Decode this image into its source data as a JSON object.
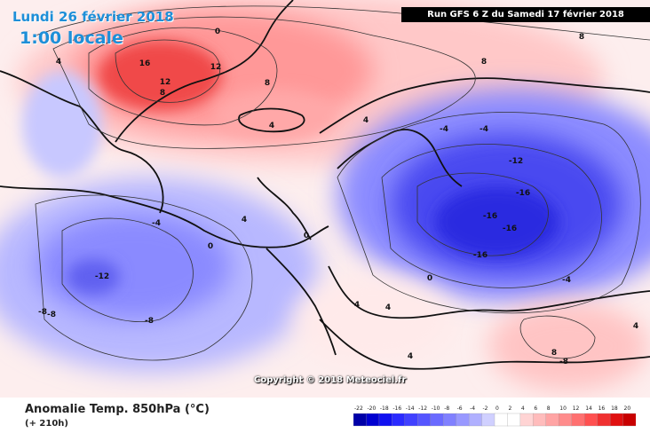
{
  "map": {
    "date_line": "Lundi 26 février 2018",
    "time_line": "1:00 locale",
    "run_info": "Run GFS 6 Z du Samedi 17 février 2018",
    "copyright": "Copyright © 2018 Meteociel.fr",
    "variable": "Anomalie Temp. 850hPa (°C)",
    "lead_time": "(+ 210h)"
  },
  "legend": {
    "ticks": [
      "-22",
      "-20",
      "-18",
      "-16",
      "-14",
      "-12",
      "-10",
      "-8",
      "-6",
      "-4",
      "-2",
      "0",
      "2",
      "4",
      "6",
      "8",
      "10",
      "12",
      "14",
      "16",
      "18",
      "20"
    ],
    "colors": [
      "#0000a8",
      "#0000d0",
      "#1010f0",
      "#2a2aff",
      "#4040ff",
      "#5555ff",
      "#6a6aff",
      "#8080ff",
      "#9898ff",
      "#b0b0ff",
      "#d0d0ff",
      "#ffffff",
      "#ffffff",
      "#ffd4d4",
      "#ffbcbc",
      "#ffa4a4",
      "#ff8c8c",
      "#ff7070",
      "#ff5050",
      "#f03030",
      "#e01010",
      "#c80000"
    ]
  },
  "contour_labels": [
    {
      "text": "16"
    },
    {
      "text": "12"
    },
    {
      "text": "12"
    },
    {
      "text": "8"
    },
    {
      "text": "8"
    },
    {
      "text": "8"
    },
    {
      "text": "8"
    },
    {
      "text": "4"
    },
    {
      "text": "4"
    },
    {
      "text": "4"
    },
    {
      "text": "4"
    },
    {
      "text": "0"
    },
    {
      "text": "0"
    },
    {
      "text": "0"
    },
    {
      "text": "0"
    },
    {
      "text": "-4"
    },
    {
      "text": "-4"
    },
    {
      "text": "-4"
    },
    {
      "text": "-8"
    },
    {
      "text": "-8"
    },
    {
      "text": "-8"
    },
    {
      "text": "-12"
    },
    {
      "text": "-12"
    },
    {
      "text": "-16"
    },
    {
      "text": "-16"
    },
    {
      "text": "-16"
    },
    {
      "text": "-16"
    },
    {
      "text": "4"
    },
    {
      "text": "4"
    },
    {
      "text": "4"
    },
    {
      "text": "-4"
    },
    {
      "text": "8"
    },
    {
      "text": "-8"
    },
    {
      "text": "4"
    }
  ]
}
